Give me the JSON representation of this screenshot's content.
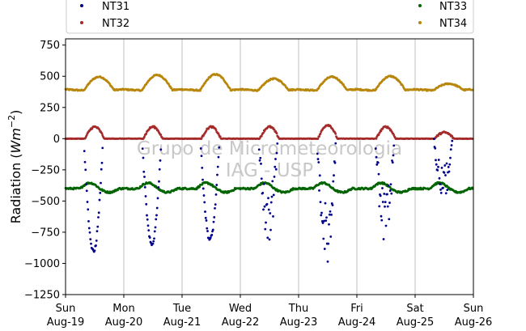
{
  "chart_data": {
    "type": "scatter",
    "ylabel": "Radiation (Wm⁻²)",
    "ylabel_base": "Radiation (",
    "ylabel_unit": "Wm",
    "ylabel_exp": "−2",
    "ylabel_close": ")",
    "watermark": [
      "Grupo de Micrometeorologia",
      "IAG - USP"
    ],
    "ylim": [
      -1250,
      800
    ],
    "yticks": [
      {
        "value": 750,
        "label": "750"
      },
      {
        "value": 500,
        "label": "500"
      },
      {
        "value": 250,
        "label": "250"
      },
      {
        "value": 0,
        "label": "0"
      },
      {
        "value": -250,
        "label": "−250"
      },
      {
        "value": -500,
        "label": "−500"
      },
      {
        "value": -750,
        "label": "−750"
      },
      {
        "value": -1000,
        "label": "−1000"
      },
      {
        "value": -1250,
        "label": "−1250"
      }
    ],
    "xlim_days": [
      19,
      26
    ],
    "xticks": [
      {
        "day": 19,
        "weekday": "Sun",
        "date": "Aug-19"
      },
      {
        "day": 20,
        "weekday": "Mon",
        "date": "Aug-20"
      },
      {
        "day": 21,
        "weekday": "Tue",
        "date": "Aug-21"
      },
      {
        "day": 22,
        "weekday": "Wed",
        "date": "Aug-22"
      },
      {
        "day": 23,
        "weekday": "Thu",
        "date": "Aug-23"
      },
      {
        "day": 24,
        "weekday": "Fri",
        "date": "Aug-24"
      },
      {
        "day": 25,
        "weekday": "Sat",
        "date": "Aug-25"
      },
      {
        "day": 26,
        "weekday": "Sun",
        "date": "Aug-26"
      }
    ],
    "grid_x": true,
    "legend_placement": "top, above plot",
    "series": [
      {
        "name": "NT31",
        "color": "#00008b",
        "pattern": "diurnal-negative",
        "daily_min": [
          -910,
          -850,
          -810,
          -800,
          -950,
          -830,
          -460
        ],
        "noisy_days": [
          3,
          4,
          5,
          6
        ]
      },
      {
        "name": "NT32",
        "color": "#a52a2a",
        "pattern": "diurnal-positive",
        "daily_max": [
          95,
          95,
          95,
          95,
          110,
          95,
          50
        ]
      },
      {
        "name": "NT33",
        "color": "#006400",
        "pattern": "offset-wave",
        "base": -400,
        "amplitude": 35
      },
      {
        "name": "NT34",
        "color": "#b8860b",
        "pattern": "offset-wave-positive",
        "base": 395,
        "daily_max": [
          505,
          520,
          525,
          490,
          505,
          510,
          450
        ]
      }
    ]
  }
}
